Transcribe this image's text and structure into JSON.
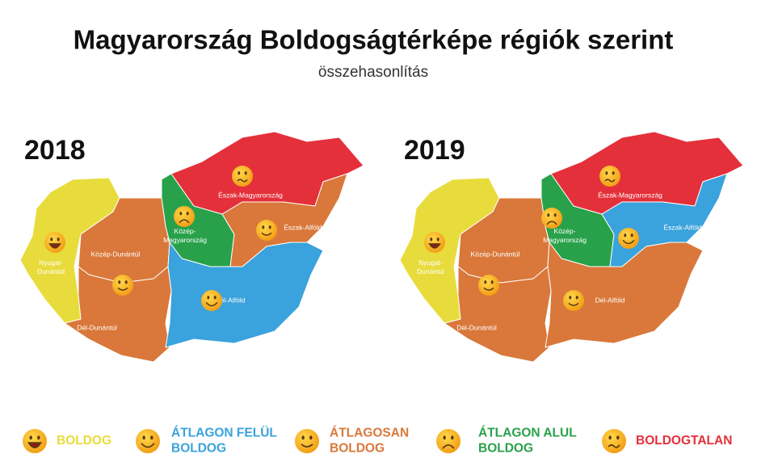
{
  "title": "Magyarország Boldogságtérképe régiók szerint",
  "subtitle": "összehasonlítás",
  "legend": [
    {
      "lines": [
        "BOLDOG"
      ],
      "color": "#e8dc3c"
    },
    {
      "lines": [
        "ÁTLAGON FELÜL",
        "BOLDOG"
      ],
      "color": "#3aa2dc"
    },
    {
      "lines": [
        "ÁTLAGOSAN",
        "BOLDOG"
      ],
      "color": "#d9783a"
    },
    {
      "lines": [
        "ÁTLAGON ALUL",
        "BOLDOG"
      ],
      "color": "#28a14a"
    },
    {
      "lines": [
        "BOLDOGTALAN"
      ],
      "color": "#e4303a"
    }
  ],
  "maps": [
    {
      "year": "2018",
      "regions": [
        {
          "lines": [
            "Nyugat-",
            "Dunántúl"
          ],
          "category": 0
        },
        {
          "lines": [
            "Közép-Dunántúl"
          ],
          "category": 2
        },
        {
          "lines": [
            "Dél-Dunántúl"
          ],
          "category": 2
        },
        {
          "lines": [
            "Közép-",
            "Magyarország"
          ],
          "category": 3
        },
        {
          "lines": [
            "Észak-Magyarország"
          ],
          "category": 4
        },
        {
          "lines": [
            "Észak-Alföld"
          ],
          "category": 2
        },
        {
          "lines": [
            "Dél-Alföld"
          ],
          "category": 1
        }
      ]
    },
    {
      "year": "2019",
      "regions": [
        {
          "lines": [
            "Nyugat-",
            "Dunántúl"
          ],
          "category": 0
        },
        {
          "lines": [
            "Közép-Dunántúl"
          ],
          "category": 2
        },
        {
          "lines": [
            "Dél-Dunántúl"
          ],
          "category": 2
        },
        {
          "lines": [
            "Közép-",
            "Magyarország"
          ],
          "category": 3
        },
        {
          "lines": [
            "Észak-Magyarország"
          ],
          "category": 4
        },
        {
          "lines": [
            "Észak-Alföld"
          ],
          "category": 1
        },
        {
          "lines": [
            "Dél-Alföld"
          ],
          "category": 2
        }
      ]
    }
  ]
}
